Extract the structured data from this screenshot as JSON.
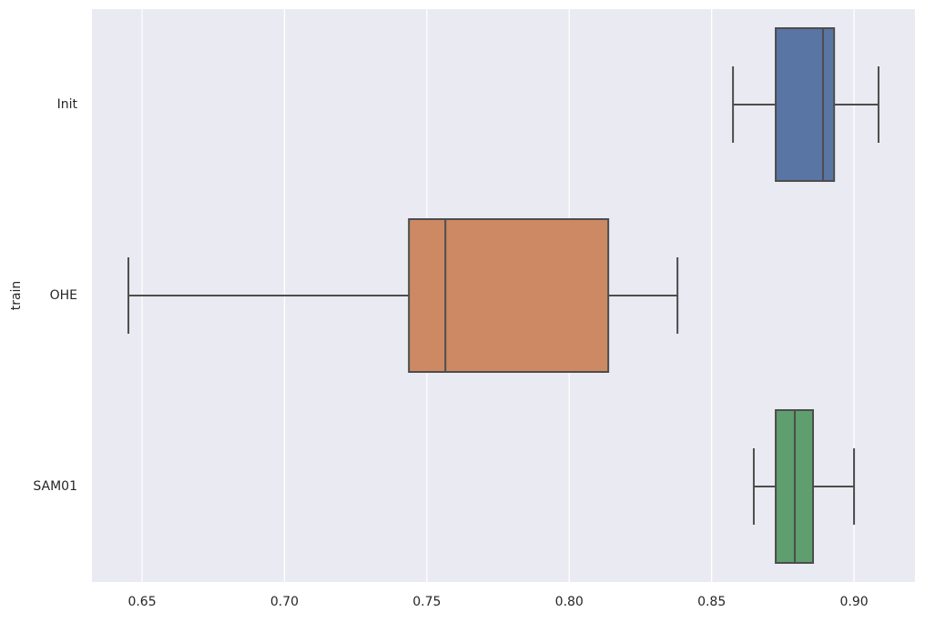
{
  "chart_data": {
    "type": "boxplot",
    "orientation": "horizontal",
    "y_label": "train",
    "categories": [
      "Init",
      "OHE",
      "SAM01"
    ],
    "colors": [
      "#5875a4",
      "#cc8963",
      "#5f9e6e"
    ],
    "stats": [
      {
        "min": 0.8575,
        "q1": 0.8725,
        "median": 0.8891,
        "q3": 0.893,
        "max": 0.9086
      },
      {
        "min": 0.6452,
        "q1": 0.7437,
        "median": 0.7565,
        "q3": 0.8137,
        "max": 0.838
      },
      {
        "min": 0.8648,
        "q1": 0.8725,
        "median": 0.8792,
        "q3": 0.8856,
        "max": 0.9
      }
    ],
    "xlim": [
      0.6324,
      0.9214
    ],
    "xticks": [
      {
        "value": 0.65,
        "label": "0.65"
      },
      {
        "value": 0.7,
        "label": "0.70"
      },
      {
        "value": 0.75,
        "label": "0.75"
      },
      {
        "value": 0.8,
        "label": "0.80"
      },
      {
        "value": 0.85,
        "label": "0.85"
      },
      {
        "value": 0.9,
        "label": "0.90"
      }
    ],
    "grid": true
  }
}
